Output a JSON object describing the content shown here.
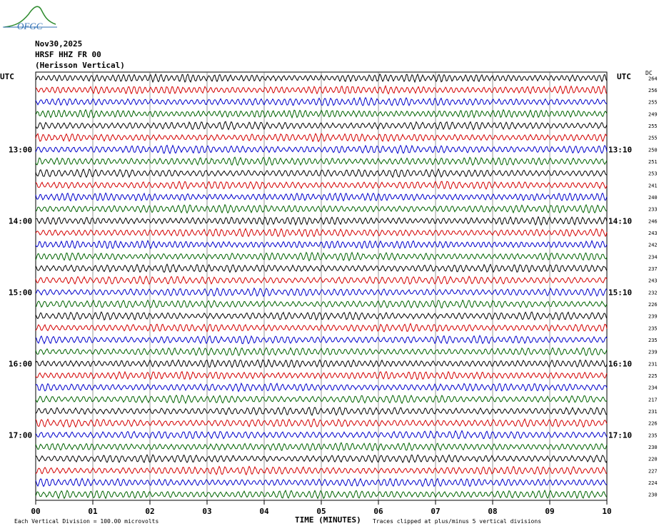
{
  "logo": {
    "text": "OFGC",
    "color": "#2f6fb3",
    "curve_color": "#2e8b2e"
  },
  "header": {
    "date": "Nov30,2025",
    "station": "HRSF HHZ FR 00",
    "location": "(Herisson Vertical)"
  },
  "labels": {
    "utc_left": "UTC",
    "utc_right": "UTC",
    "dc_header": "DC",
    "xlabel": "TIME (MINUTES)",
    "footnote_left": "Each Vertical Division =  100.00 microvolts",
    "footnote_right": "Traces clipped at plus/minus 5 vertical divisions"
  },
  "chart_data": {
    "type": "line",
    "title": "",
    "xlabel": "TIME (MINUTES)",
    "x_ticks": [
      "00",
      "01",
      "02",
      "03",
      "04",
      "05",
      "06",
      "07",
      "08",
      "09",
      "10"
    ],
    "xlim": [
      0,
      10
    ],
    "grid": true,
    "trace_colors": [
      "#000000",
      "#d40000",
      "#0000cc",
      "#006400"
    ],
    "left_hour_labels": [
      {
        "row": 6,
        "label": "13:00"
      },
      {
        "row": 12,
        "label": "14:00"
      },
      {
        "row": 18,
        "label": "15:00"
      },
      {
        "row": 24,
        "label": "16:00"
      },
      {
        "row": 30,
        "label": "17:00"
      }
    ],
    "right_hour_labels": [
      {
        "row": 6,
        "label": "13:10"
      },
      {
        "row": 12,
        "label": "14:10"
      },
      {
        "row": 18,
        "label": "15:10"
      },
      {
        "row": 24,
        "label": "16:10"
      },
      {
        "row": 30,
        "label": "17:10"
      }
    ],
    "dc_offsets": [
      264,
      256,
      255,
      249,
      255,
      255,
      250,
      251,
      253,
      241,
      240,
      233,
      246,
      243,
      242,
      234,
      237,
      243,
      232,
      226,
      239,
      235,
      235,
      239,
      231,
      225,
      234,
      217,
      231,
      226,
      235,
      230,
      220,
      227,
      224,
      230
    ]
  }
}
